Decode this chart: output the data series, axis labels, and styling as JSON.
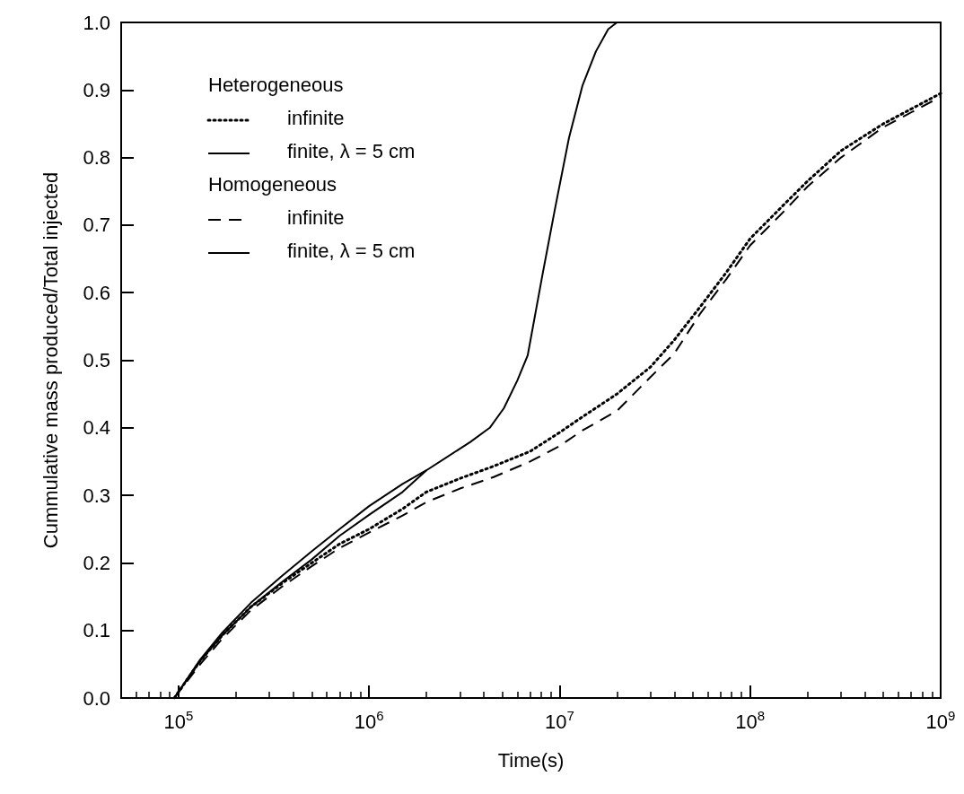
{
  "chart_data": {
    "type": "line",
    "xlabel": "Time(s)",
    "ylabel": "Cummulative mass produced/Total injected",
    "log": "x",
    "xlim": [
      50000,
      1000000000
    ],
    "xticks": [
      {
        "value": 100000,
        "label": "10$^{5}$"
      },
      {
        "value": 1000000,
        "label": "10$^{6}$"
      },
      {
        "value": 10000000,
        "label": "10$^{7}$"
      },
      {
        "value": 100000000,
        "label": "10$^{8}$"
      },
      {
        "value": 1000000000,
        "label": "10$^{9}$"
      }
    ],
    "ylim": [
      0,
      1
    ],
    "yticks": [
      {
        "value": 0,
        "label": "0.0"
      },
      0.1,
      0.2,
      0.3,
      0.4,
      0.5,
      0.6,
      0.7,
      0.8,
      0.9,
      {
        "value": 1,
        "label": "1.0"
      }
    ],
    "grid": false,
    "legend": "top left",
    "marker": "none",
    "annotations": [
      "Heterogeneous",
      "Homogeneous"
    ],
    "series": [
      {
        "name": "infinite",
        "color": "#000000",
        "line_style": "dotted",
        "x": [
          95000,
          130000,
          170000,
          240000,
          350000,
          500000,
          700000,
          1000000,
          1500000,
          2000000,
          3000000,
          4500000,
          7000000,
          10000000,
          13000000,
          20000000,
          30000000,
          40000000,
          55000000,
          75000000,
          100000000,
          150000000,
          200000000,
          300000000,
          500000000,
          1000000000
        ],
        "values": [
          0,
          0.055,
          0.093,
          0.135,
          0.17,
          0.2,
          0.228,
          0.25,
          0.28,
          0.305,
          0.325,
          0.343,
          0.365,
          0.393,
          0.415,
          0.45,
          0.49,
          0.53,
          0.58,
          0.63,
          0.68,
          0.73,
          0.765,
          0.81,
          0.85,
          0.895
        ]
      },
      {
        "name": "finite, λ = 5 cm",
        "color": "#000000",
        "line_style": "solid",
        "x": [
          95000,
          130000,
          170000,
          240000,
          350000,
          500000,
          700000,
          1000000,
          1500000,
          2000000,
          3400000,
          4300000,
          5100000,
          6000000,
          6800000,
          8100000,
          9500000,
          11200000,
          13200000,
          15500000,
          18000000,
          20000000
        ],
        "values": [
          0,
          0.057,
          0.097,
          0.141,
          0.181,
          0.217,
          0.25,
          0.284,
          0.317,
          0.337,
          0.379,
          0.4,
          0.429,
          0.47,
          0.507,
          0.624,
          0.727,
          0.829,
          0.907,
          0.957,
          0.99,
          1
        ]
      },
      {
        "name": "infinite",
        "color": "#000000",
        "line_style": "dashed",
        "x": [
          95000,
          130000,
          170000,
          240000,
          350000,
          500000,
          700000,
          1000000,
          1500000,
          2000000,
          3000000,
          4500000,
          7000000,
          10000000,
          13000000,
          20000000,
          30000000,
          40000000,
          55000000,
          75000000,
          100000000,
          150000000,
          200000000,
          300000000,
          500000000,
          1000000000
        ],
        "values": [
          0,
          0.05,
          0.088,
          0.13,
          0.165,
          0.195,
          0.222,
          0.245,
          0.27,
          0.29,
          0.31,
          0.327,
          0.35,
          0.373,
          0.395,
          0.425,
          0.475,
          0.51,
          0.57,
          0.62,
          0.67,
          0.72,
          0.757,
          0.8,
          0.845,
          0.89
        ]
      },
      {
        "name": "finite, λ = 5 cm",
        "color": "#000000",
        "line_style": "solid",
        "x": [
          95000,
          130000,
          170000,
          240000,
          350000,
          500000,
          700000,
          1000000,
          1500000,
          2000000
        ],
        "values": [
          0,
          0.055,
          0.093,
          0.135,
          0.172,
          0.205,
          0.24,
          0.271,
          0.305,
          0.337
        ]
      }
    ]
  }
}
